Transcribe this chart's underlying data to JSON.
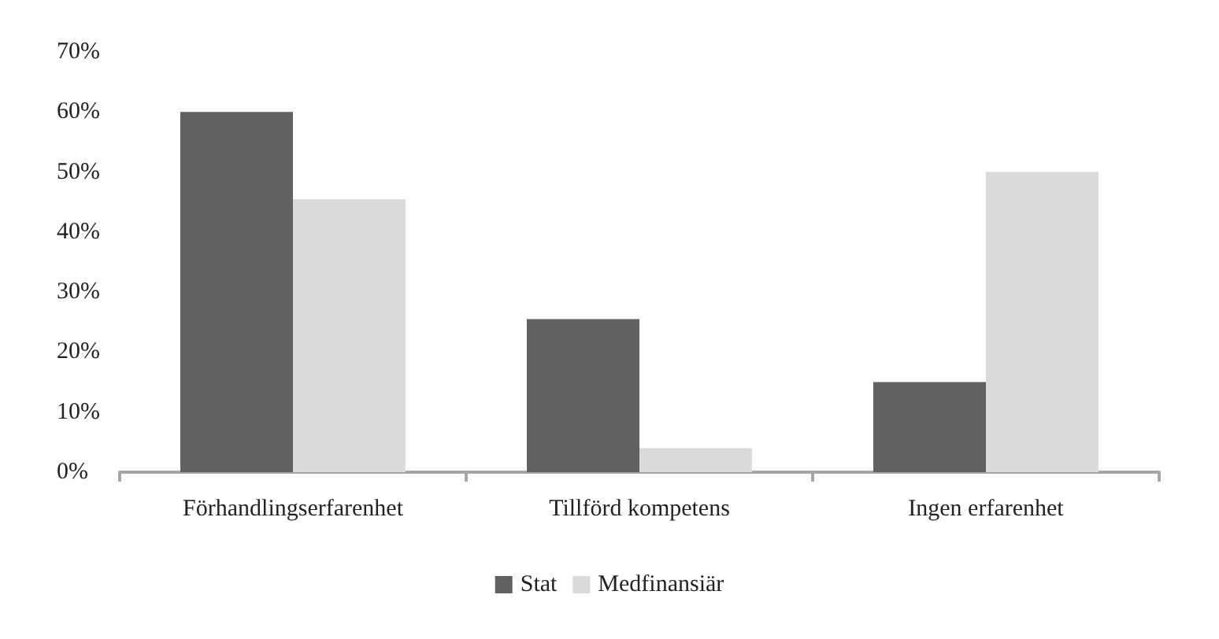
{
  "chart_data": {
    "type": "bar",
    "categories": [
      "Förhandlingserfarenhet",
      "Tillförd kompetens",
      "Ingen erfarenhet"
    ],
    "series": [
      {
        "name": "Stat",
        "color": "#616161",
        "values": [
          60,
          25.5,
          15
        ]
      },
      {
        "name": "Medfinansiär",
        "color": "#dadada",
        "values": [
          45.5,
          4,
          50
        ]
      }
    ],
    "ylim": [
      0,
      70
    ],
    "yticks": [
      {
        "value": 0,
        "label": "0%"
      },
      {
        "value": 10,
        "label": "10%"
      },
      {
        "value": 20,
        "label": "20%"
      },
      {
        "value": 30,
        "label": "30%"
      },
      {
        "value": 40,
        "label": "40%"
      },
      {
        "value": 50,
        "label": "50%"
      },
      {
        "value": 60,
        "label": "60%"
      },
      {
        "value": 70,
        "label": "70%"
      }
    ],
    "grid": false,
    "legend": "bottom"
  }
}
